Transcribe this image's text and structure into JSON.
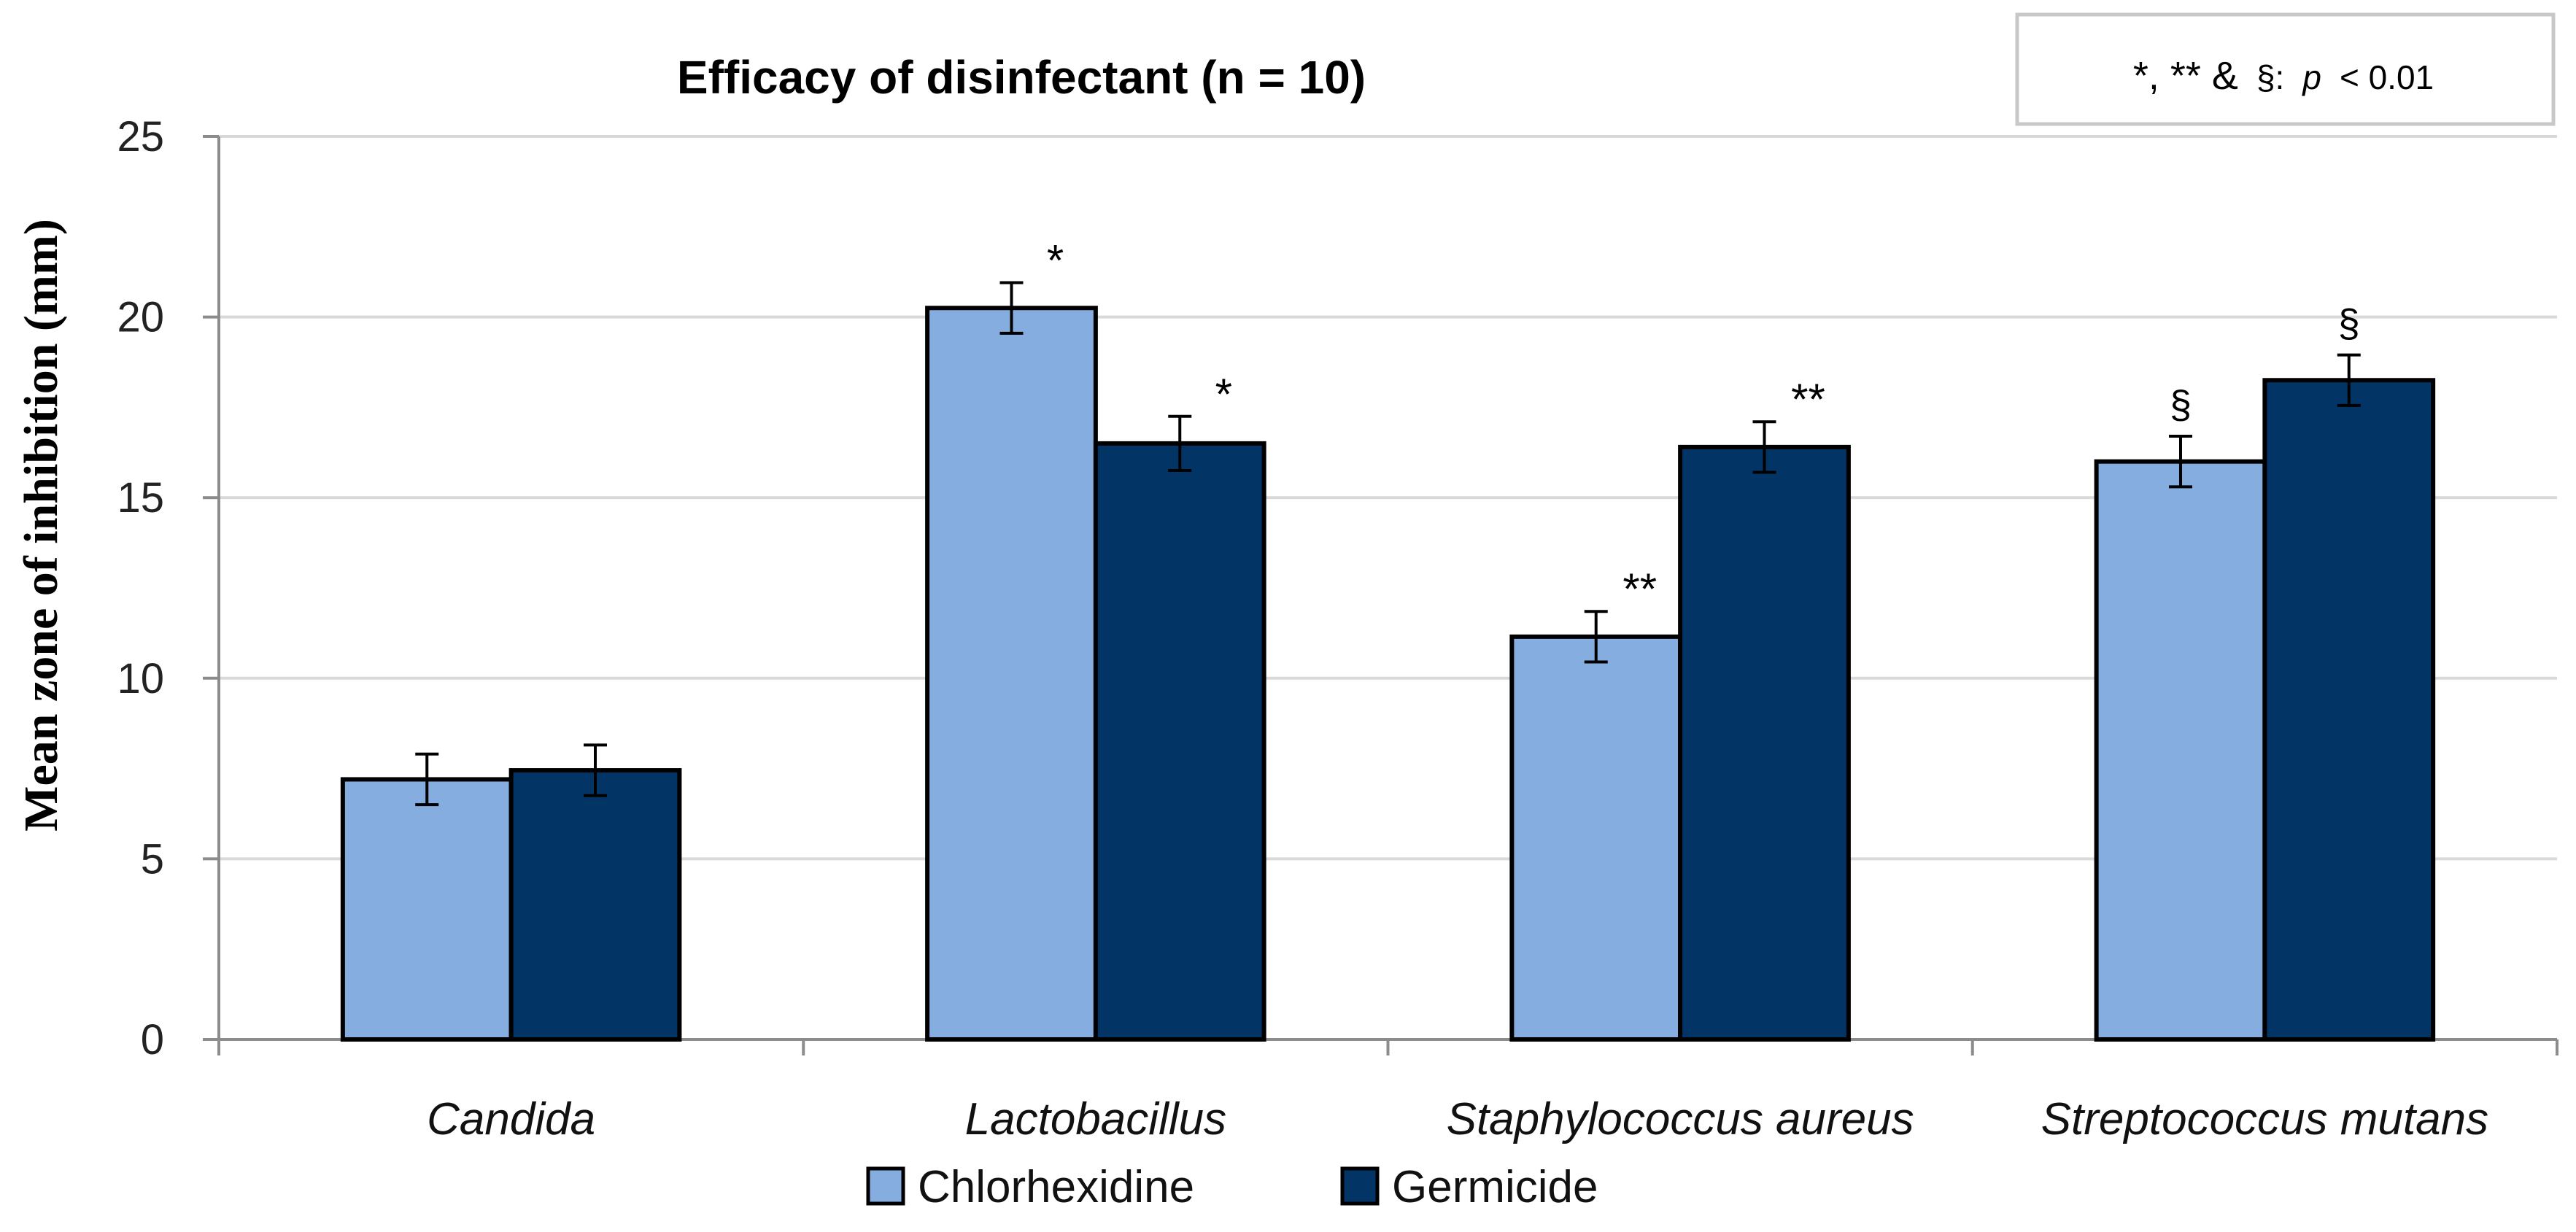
{
  "chart_data": {
    "type": "bar",
    "title": "Efficacy of disinfectant (n = 10)",
    "xlabel": "",
    "ylabel": "Mean zone of inhibition (mm)",
    "ylim": [
      0,
      25
    ],
    "yticks": [
      0,
      5,
      10,
      15,
      20,
      25
    ],
    "grid": true,
    "categories": [
      "Candida",
      "Lactobacillus",
      "Staphylococcus aureus",
      "Streptococcus mutans"
    ],
    "series": [
      {
        "name": "Chlorhexidine",
        "color": "#85ADDF",
        "values": [
          7.2,
          20.25,
          11.15,
          16.0
        ],
        "errors": [
          0.7,
          0.7,
          0.7,
          0.7
        ],
        "markers": [
          "",
          "*",
          "**",
          "§"
        ]
      },
      {
        "name": "Germicide",
        "color": "#033466",
        "values": [
          7.45,
          16.5,
          16.4,
          18.25
        ],
        "errors": [
          0.7,
          0.75,
          0.7,
          0.7
        ],
        "markers": [
          "",
          "*",
          "**",
          "§"
        ]
      }
    ],
    "legend_position": "bottom",
    "annotation": {
      "symbols": "*, ** &",
      "section": "§:",
      "p": "p",
      "threshold": "< 0.01"
    }
  }
}
